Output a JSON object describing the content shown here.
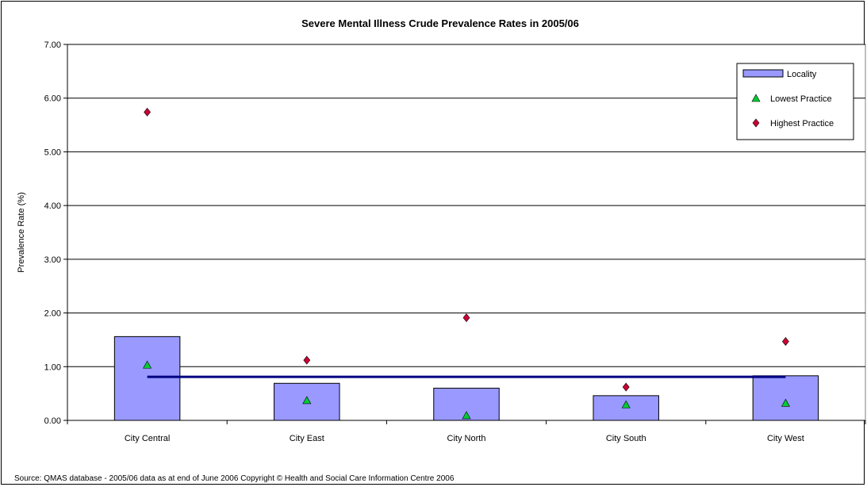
{
  "chart_data": {
    "type": "bar",
    "title": "Severe Mental Illness Crude Prevalence Rates in 2005/06",
    "ylabel": "Prevalence Rate (%)",
    "xlabel": "",
    "ylim": [
      0,
      7
    ],
    "yticks": [
      "0.00",
      "1.00",
      "2.00",
      "3.00",
      "4.00",
      "5.00",
      "6.00",
      "7.00"
    ],
    "ytick_values": [
      0,
      1,
      2,
      3,
      4,
      5,
      6,
      7
    ],
    "grid": true,
    "legend_position": "top-right",
    "categories": [
      "City Central",
      "City East",
      "City North",
      "City South",
      "City West"
    ],
    "series": [
      {
        "name": "Locality",
        "kind": "bar",
        "color": "#9999ff",
        "values": [
          1.56,
          0.69,
          0.6,
          0.46,
          0.83
        ]
      },
      {
        "name": "Lowest Practice",
        "kind": "marker-triangle",
        "color": "#00cc33",
        "values": [
          1.03,
          0.37,
          0.09,
          0.29,
          0.32
        ]
      },
      {
        "name": "Highest Practice",
        "kind": "marker-diamond",
        "color": "#cc0033",
        "values": [
          5.74,
          1.12,
          1.91,
          0.62,
          1.47
        ]
      }
    ],
    "reference_line": {
      "color": "#000080",
      "value": 0.81
    },
    "source": "Source: QMAS database - 2005/06 data as at end of June 2006 Copyright © Health and Social Care Information Centre 2006"
  }
}
